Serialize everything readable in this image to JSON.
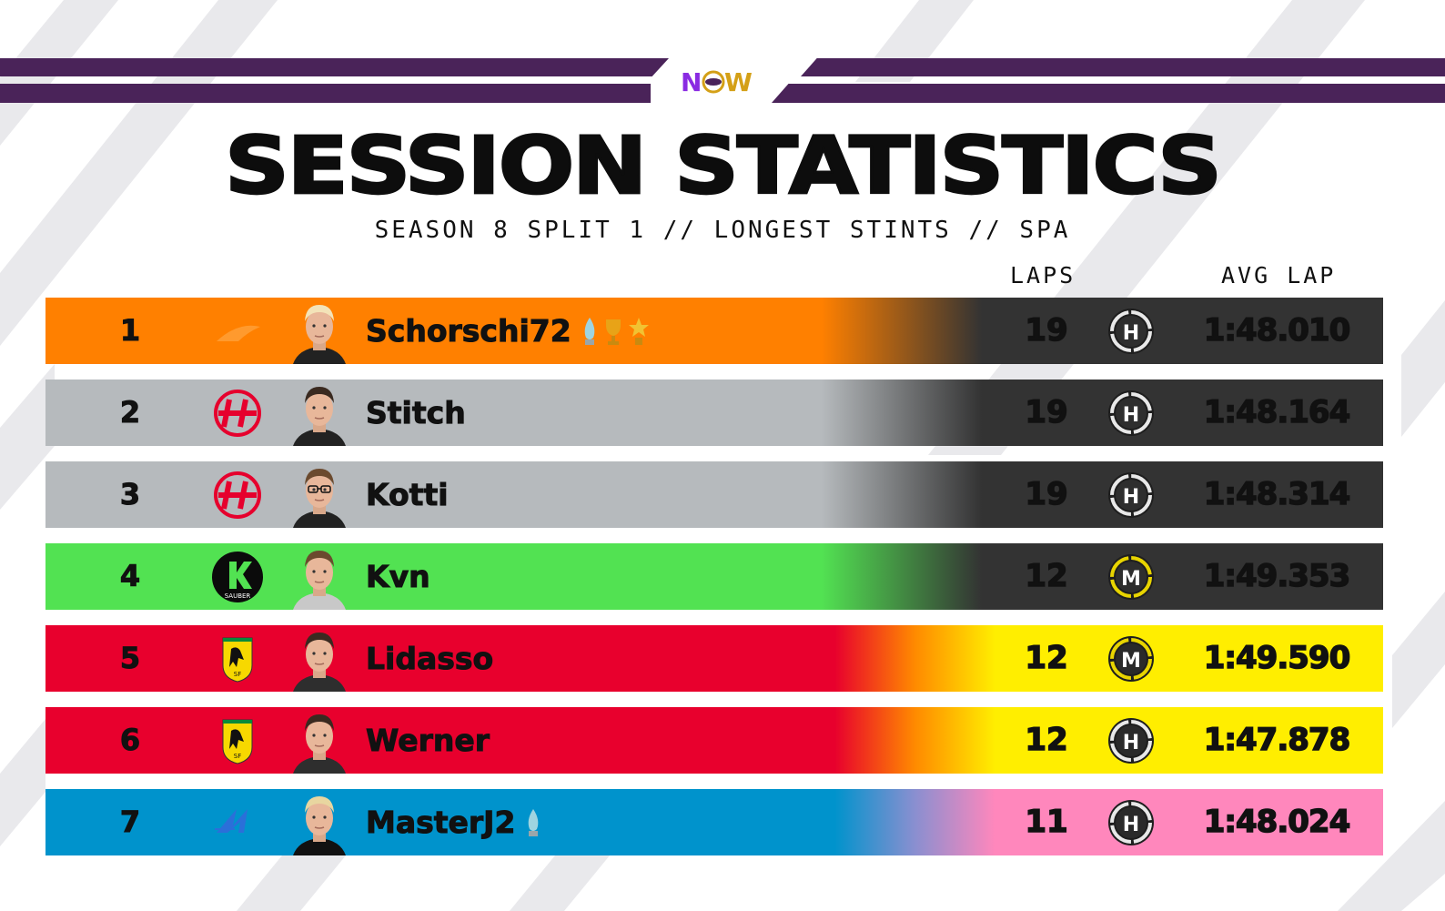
{
  "brand": {
    "logo_text": "NOW",
    "color_primary": "#4a2359"
  },
  "header": {
    "title": "SESSION STATISTICS",
    "subtitle": "SEASON 8 SPLIT 1 // LONGEST STINTS // SPA"
  },
  "columns": {
    "laps": "LAPS",
    "avg_lap": "AVG LAP"
  },
  "rows": [
    {
      "pos": "1",
      "driver": "Schorschi72",
      "team": "McLaren",
      "team_logo": "mclaren-swoosh-icon",
      "team_color": "#ff8000",
      "tail_color": "#333333",
      "text_tail": "#111111",
      "laps": "19",
      "tyre": "H",
      "tyre_name": "hard-tyre-icon",
      "avg_lap": "1:48.010",
      "awards": [
        "drop-trophy-icon",
        "trophy-icon",
        "star-trophy-icon"
      ]
    },
    {
      "pos": "2",
      "driver": "Stitch",
      "team": "Haas",
      "team_logo": "haas-logo-icon",
      "team_color": "#b6babd",
      "tail_color": "#333333",
      "text_tail": "#111111",
      "laps": "19",
      "tyre": "H",
      "tyre_name": "hard-tyre-icon",
      "avg_lap": "1:48.164",
      "awards": []
    },
    {
      "pos": "3",
      "driver": "Kotti",
      "team": "Haas",
      "team_logo": "haas-logo-icon",
      "team_color": "#b6babd",
      "tail_color": "#333333",
      "text_tail": "#111111",
      "laps": "19",
      "tyre": "H",
      "tyre_name": "hard-tyre-icon",
      "avg_lap": "1:48.314",
      "awards": []
    },
    {
      "pos": "4",
      "driver": "Kvn",
      "team": "Sauber",
      "team_logo": "sauber-logo-icon",
      "team_color": "#52e252",
      "tail_color": "#333333",
      "text_tail": "#111111",
      "laps": "12",
      "tyre": "M",
      "tyre_name": "medium-tyre-icon",
      "avg_lap": "1:49.353",
      "awards": []
    },
    {
      "pos": "5",
      "driver": "Lidasso",
      "team": "Ferrari",
      "team_logo": "ferrari-logo-icon",
      "team_color": "#e8002d",
      "tail_color": "#ffee00",
      "text_tail": "#111111",
      "laps": "12",
      "tyre": "M",
      "tyre_name": "medium-tyre-icon",
      "avg_lap": "1:49.590",
      "awards": []
    },
    {
      "pos": "6",
      "driver": "Werner",
      "team": "Ferrari",
      "team_logo": "ferrari-logo-icon",
      "team_color": "#e8002d",
      "tail_color": "#ffee00",
      "text_tail": "#111111",
      "laps": "12",
      "tyre": "H",
      "tyre_name": "hard-tyre-icon",
      "avg_lap": "1:47.878",
      "awards": []
    },
    {
      "pos": "7",
      "driver": "MasterJ2",
      "team": "Alpine",
      "team_logo": "alpine-logo-icon",
      "team_color": "#0093cc",
      "tail_color": "#ff87bc",
      "text_tail": "#111111",
      "laps": "11",
      "tyre": "H",
      "tyre_name": "hard-tyre-icon",
      "avg_lap": "1:48.024",
      "awards": [
        "drop-trophy-icon"
      ]
    }
  ]
}
